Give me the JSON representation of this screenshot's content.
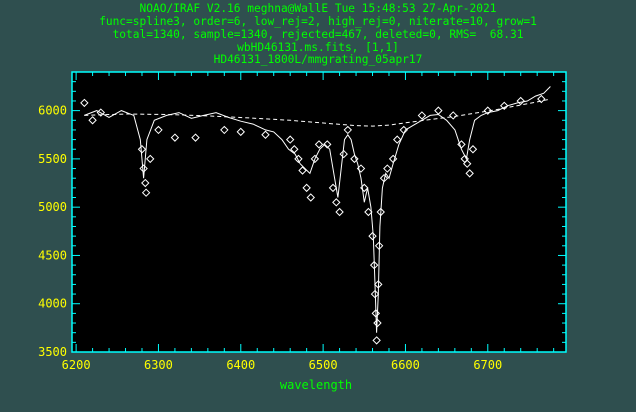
{
  "header": {
    "line1": "NOAO/IRAF V2.16 meghna@WallE Tue 15:48:53 27-Apr-2021",
    "line2": "func=spline3, order=6, low_rej=2, high_rej=0, niterate=10, grow=1",
    "line3": "total=1340, sample=1340, rejected=467, deleted=0, RMS=  68.31",
    "line4": "wbHD46131.ms.fits, [1,1]",
    "line5": "HD46131_1800L/mmgrating_05apr17"
  },
  "colors": {
    "background": "#2f4f4f",
    "header_text": "#00ff00",
    "axes": "#00ffff",
    "tick_labels": "#ffff00",
    "plot_area": "#000000",
    "data": "#ffffff"
  },
  "chart_data": {
    "type": "line",
    "xlabel": "wavelength",
    "ylabel": "",
    "xlim": [
      6195,
      6795
    ],
    "ylim": [
      3500,
      6400
    ],
    "xticks": [
      6200,
      6300,
      6400,
      6500,
      6600,
      6700
    ],
    "yticks": [
      3500,
      4000,
      4500,
      5000,
      5500,
      6000
    ],
    "grid": false,
    "series": [
      {
        "style": "solid-line",
        "x": [
          6210,
          6225,
          6240,
          6255,
          6270,
          6278,
          6282,
          6286,
          6295,
          6310,
          6325,
          6340,
          6355,
          6370,
          6385,
          6400,
          6415,
          6430,
          6440,
          6450,
          6458,
          6466,
          6472,
          6478,
          6484,
          6490,
          6496,
          6502,
          6508,
          6514,
          6518,
          6522,
          6526,
          6530,
          6534,
          6538,
          6542,
          6546,
          6550,
          6554,
          6558,
          6561,
          6563,
          6565,
          6567,
          6569,
          6572,
          6576,
          6580,
          6585,
          6592,
          6600,
          6610,
          6620,
          6630,
          6640,
          6650,
          6660,
          6668,
          6674,
          6678,
          6684,
          6692,
          6700,
          6712,
          6724,
          6736,
          6748,
          6758,
          6768,
          6776
        ],
        "y": [
          5950,
          6000,
          5930,
          6000,
          5950,
          5700,
          5300,
          5700,
          5900,
          5950,
          5980,
          5920,
          5950,
          5980,
          5930,
          5890,
          5860,
          5800,
          5780,
          5700,
          5600,
          5550,
          5450,
          5400,
          5350,
          5500,
          5600,
          5650,
          5600,
          5300,
          5100,
          5400,
          5700,
          5750,
          5700,
          5550,
          5450,
          5300,
          5050,
          5200,
          5000,
          4700,
          4200,
          3700,
          4100,
          4800,
          5200,
          5350,
          5300,
          5450,
          5650,
          5800,
          5850,
          5900,
          5950,
          5960,
          5900,
          5800,
          5600,
          5500,
          5700,
          5900,
          5950,
          5980,
          6000,
          6050,
          6080,
          6100,
          6150,
          6180,
          6250
        ]
      },
      {
        "style": "dashed-fit",
        "x": [
          6210,
          6260,
          6310,
          6360,
          6410,
          6460,
          6510,
          6540,
          6560,
          6580,
          6610,
          6660,
          6710,
          6760,
          6776
        ],
        "y": [
          5950,
          5965,
          5960,
          5945,
          5925,
          5900,
          5865,
          5845,
          5840,
          5850,
          5885,
          5940,
          6010,
          6090,
          6120
        ]
      },
      {
        "style": "diamond-rejected",
        "x": [
          6210,
          6220,
          6230,
          6280,
          6282,
          6284,
          6285,
          6290,
          6300,
          6320,
          6345,
          6380,
          6400,
          6430,
          6460,
          6465,
          6470,
          6475,
          6480,
          6485,
          6490,
          6495,
          6505,
          6512,
          6516,
          6520,
          6525,
          6530,
          6538,
          6546,
          6550,
          6555,
          6560,
          6562,
          6563,
          6564,
          6565,
          6566,
          6567,
          6568,
          6570,
          6574,
          6578,
          6585,
          6590,
          6598,
          6620,
          6640,
          6658,
          6668,
          6672,
          6675,
          6678,
          6682,
          6700,
          6720,
          6740,
          6765
        ],
        "y": [
          6080,
          5900,
          5980,
          5600,
          5400,
          5250,
          5150,
          5500,
          5800,
          5720,
          5720,
          5800,
          5780,
          5750,
          5700,
          5600,
          5500,
          5380,
          5200,
          5100,
          5500,
          5650,
          5650,
          5200,
          5050,
          4950,
          5550,
          5800,
          5500,
          5400,
          5200,
          4950,
          4700,
          4400,
          4100,
          3900,
          3620,
          3800,
          4200,
          4600,
          4950,
          5300,
          5400,
          5500,
          5700,
          5800,
          5950,
          6000,
          5950,
          5650,
          5500,
          5450,
          5350,
          5600,
          6000,
          6050,
          6100,
          6120
        ]
      }
    ]
  }
}
